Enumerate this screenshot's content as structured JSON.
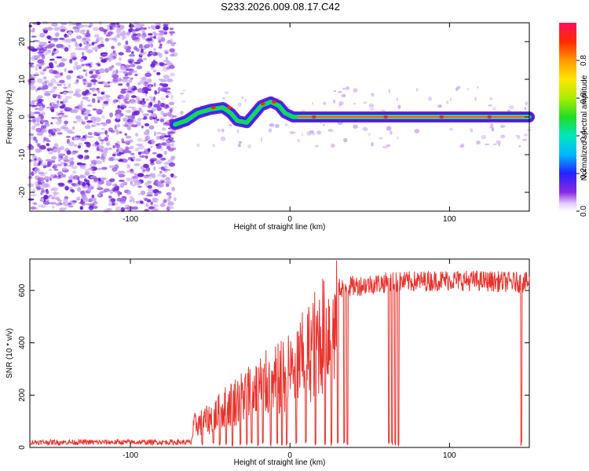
{
  "page_title": "S233.2026.009.08.17.C42",
  "colors": {
    "cloud_dark": "#6a1fd6",
    "cloud_mid": "#9a55e8",
    "cloud_light": "#c9a8f3",
    "snr_line": "#e8332d"
  },
  "chart_data": [
    {
      "type": "heatmap",
      "title": "S233.2026.009.08.17.C42",
      "xlabel": "Height of straight line (km)",
      "ylabel": "Frequency (Hz)",
      "xlim": [
        -163,
        150
      ],
      "ylim": [
        -25,
        25
      ],
      "xticks": [
        -100,
        0,
        100
      ],
      "xtick_labels": [
        "-100",
        "0",
        "100"
      ],
      "yticks": [
        -20,
        -10,
        0,
        10,
        20
      ],
      "ytick_labels": [
        "-20",
        "-10",
        "0",
        "10",
        "20"
      ],
      "noise_region_x": [
        -163,
        -72
      ],
      "ridge": {
        "description_points_x": [
          -72,
          -65,
          -58,
          -50,
          -42,
          -37,
          -33,
          -27,
          -22,
          -18,
          -12,
          -7,
          -3,
          2,
          10,
          20,
          30,
          150
        ],
        "description_points_y": [
          -2,
          -1,
          1,
          2,
          2.5,
          1,
          -1,
          -1.5,
          1,
          3,
          4,
          3,
          1,
          0,
          0,
          0,
          0,
          0
        ]
      },
      "colorbar": {
        "label": "Normalized spectral amplitude",
        "range": [
          0,
          1
        ],
        "ticks": [
          0.0,
          0.2,
          0.4,
          0.6,
          0.8
        ],
        "tick_labels": [
          "0.0",
          "0.2",
          "0.4",
          "0.6",
          "0.8"
        ]
      }
    },
    {
      "type": "line",
      "xlabel": "Height of straight line (km)",
      "ylabel": "SNR (10 * v/v)",
      "xlim": [
        -163,
        150
      ],
      "ylim": [
        0,
        720
      ],
      "xticks": [
        -100,
        0,
        100
      ],
      "xtick_labels": [
        "-100",
        "0",
        "100"
      ],
      "yticks": [
        0,
        200,
        400,
        600
      ],
      "ytick_labels": [
        "0",
        "200",
        "400",
        "600"
      ],
      "series": [
        {
          "name": "SNR",
          "x_start": -163,
          "x_end": 150,
          "envelope_x": [
            -163,
            -62,
            -60,
            -50,
            -40,
            -30,
            -20,
            -10,
            0,
            10,
            20,
            30,
            60,
            100,
            150
          ],
          "envelope_y": [
            20,
            20,
            110,
            140,
            200,
            250,
            300,
            320,
            370,
            450,
            560,
            610,
            630,
            640,
            630
          ],
          "dropout_x": [
            -55,
            -48,
            -44,
            -40,
            -36,
            -31,
            -27,
            -24,
            -20,
            -17,
            -12,
            -8,
            -5,
            -2,
            4,
            10,
            16,
            22,
            26,
            30,
            34,
            36,
            62,
            64,
            66,
            68,
            145
          ]
        }
      ]
    }
  ]
}
